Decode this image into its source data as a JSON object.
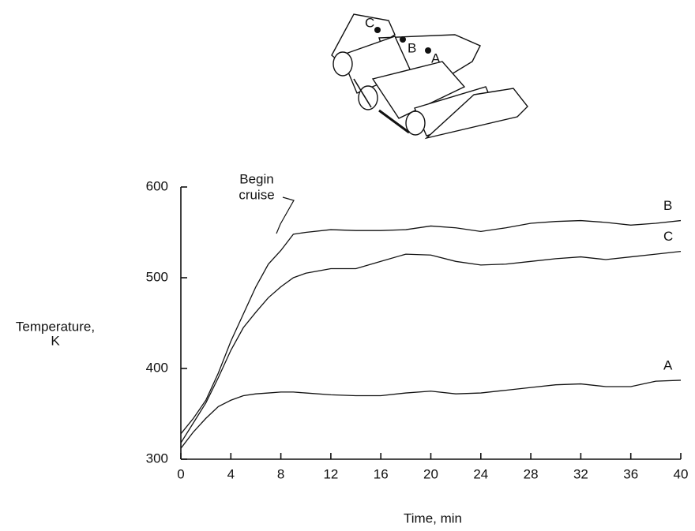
{
  "diagram": {
    "labels": [
      "C",
      "B",
      "A"
    ]
  },
  "chart_data": {
    "type": "line",
    "ylabel": [
      "Temperature,",
      "K"
    ],
    "xlabel": "Time, min",
    "annotation": [
      "Begin",
      "cruise"
    ],
    "x": [
      0,
      1,
      2,
      3,
      4,
      5,
      6,
      7,
      8,
      9,
      10,
      12,
      14,
      16,
      18,
      20,
      22,
      24,
      26,
      28,
      30,
      32,
      34,
      36,
      38,
      40
    ],
    "series": [
      {
        "name": "B",
        "color": "#111111",
        "values": [
          328,
          345,
          365,
          395,
          430,
          460,
          490,
          515,
          530,
          548,
          550,
          553,
          552,
          552,
          553,
          557,
          555,
          551,
          555,
          560,
          562,
          563,
          561,
          558,
          560,
          563
        ]
      },
      {
        "name": "C",
        "color": "#111111",
        "values": [
          318,
          340,
          362,
          390,
          420,
          445,
          462,
          478,
          490,
          500,
          505,
          510,
          510,
          518,
          526,
          525,
          518,
          514,
          515,
          518,
          521,
          523,
          520,
          523,
          526,
          529
        ]
      },
      {
        "name": "A",
        "color": "#111111",
        "values": [
          312,
          330,
          345,
          358,
          365,
          370,
          372,
          373,
          374,
          374,
          373,
          371,
          370,
          370,
          373,
          375,
          372,
          373,
          376,
          379,
          382,
          383,
          380,
          380,
          386,
          387
        ]
      }
    ],
    "xlim": [
      0,
      40
    ],
    "xticks": [
      0,
      4,
      8,
      12,
      16,
      20,
      24,
      28,
      32,
      36,
      40
    ],
    "ylim": [
      300,
      600
    ],
    "yticks": [
      300,
      400,
      500,
      600
    ],
    "grid": false
  }
}
